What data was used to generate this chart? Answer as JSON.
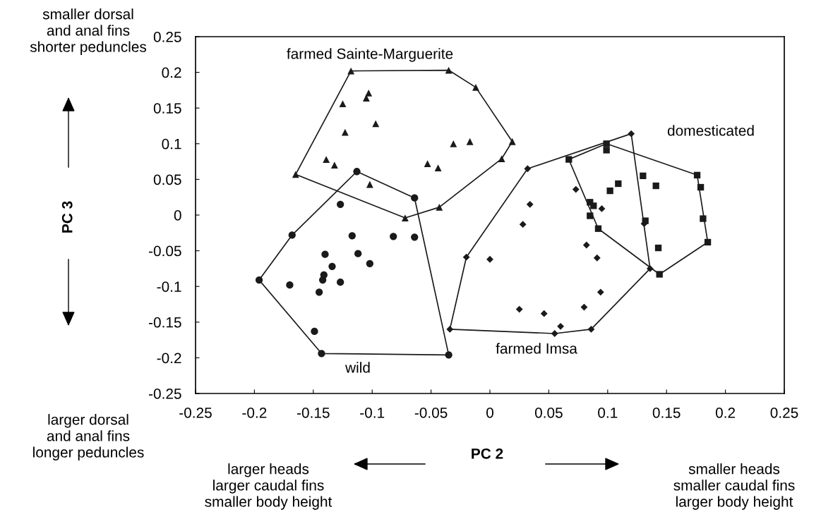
{
  "chart_data": {
    "type": "scatter",
    "xlabel": "PC 2",
    "xlim": [
      -0.25,
      0.25
    ],
    "xticks": [
      -0.25,
      -0.2,
      -0.15,
      -0.1,
      -0.05,
      0,
      0.05,
      0.1,
      0.15,
      0.2,
      0.25
    ],
    "ylim": [
      -0.25,
      0.25
    ],
    "yticks": [
      -0.25,
      -0.2,
      -0.15,
      -0.1,
      -0.05,
      0,
      0.05,
      0.1,
      0.15,
      0.2,
      0.25
    ],
    "grid": false,
    "legend": false,
    "annotations": [
      "farmed Sainte-Marguerite",
      "domesticated",
      "farmed Imsa",
      "wild",
      "PC 3",
      "smaller dorsal\nand anal fins\nshorter peduncles",
      "larger dorsal\nand anal fins\nlonger peduncles",
      "larger heads\nlarger caudal fins\nsmaller body height",
      "smaller heads\nsmaller caudal fins\nlarger body height"
    ],
    "series": [
      {
        "marker": "triangle",
        "color": "#1a1a1a",
        "x": [
          -0.118,
          -0.035,
          -0.012,
          0.019,
          0.01,
          -0.043,
          -0.072,
          -0.165,
          -0.103,
          -0.105,
          -0.125,
          -0.097,
          -0.123,
          -0.031,
          -0.017,
          -0.139,
          -0.132,
          -0.053,
          -0.044,
          -0.102
        ],
        "values": [
          0.202,
          0.203,
          0.179,
          0.103,
          0.079,
          0.011,
          -0.004,
          0.057,
          0.171,
          0.164,
          0.156,
          0.128,
          0.116,
          0.1,
          0.103,
          0.078,
          0.07,
          0.072,
          0.066,
          0.043
        ]
      },
      {
        "type": "line",
        "marker": "none",
        "color": "#1a1a1a",
        "x": [
          -0.165,
          -0.118,
          -0.035,
          -0.012,
          0.019
        ],
        "values": [
          0.057,
          0.202,
          0.203,
          0.179,
          0.103
        ]
      },
      {
        "type": "line",
        "marker": "none",
        "color": "#1a1a1a",
        "x": [
          -0.165,
          -0.072,
          -0.043,
          0.01,
          0.019
        ],
        "values": [
          0.057,
          -0.004,
          0.011,
          0.079,
          0.103
        ]
      },
      {
        "marker": "circle",
        "color": "#1a1a1a",
        "x": [
          -0.113,
          -0.064,
          -0.035,
          -0.143,
          -0.196,
          -0.168,
          -0.127,
          -0.117,
          -0.082,
          -0.064,
          -0.14,
          -0.112,
          -0.102,
          -0.134,
          -0.141,
          -0.142,
          -0.127,
          -0.17,
          -0.145,
          -0.149
        ],
        "values": [
          0.061,
          0.024,
          -0.196,
          -0.194,
          -0.091,
          -0.028,
          0.015,
          -0.029,
          -0.03,
          -0.031,
          -0.055,
          -0.054,
          -0.068,
          -0.072,
          -0.084,
          -0.091,
          -0.094,
          -0.098,
          -0.108,
          -0.163
        ]
      },
      {
        "type": "line",
        "marker": "none",
        "color": "#1a1a1a",
        "x": [
          -0.196,
          -0.168,
          -0.113,
          -0.064,
          -0.035
        ],
        "values": [
          -0.091,
          -0.028,
          0.061,
          0.024,
          -0.196
        ]
      },
      {
        "type": "line",
        "marker": "none",
        "color": "#1a1a1a",
        "x": [
          -0.196,
          -0.143,
          -0.035
        ],
        "values": [
          -0.091,
          -0.194,
          -0.196
        ]
      },
      {
        "marker": "diamond",
        "color": "#1a1a1a",
        "x": [
          0.032,
          0.12,
          0.136,
          0.086,
          0.055,
          -0.034,
          -0.02,
          0.073,
          0.034,
          0.095,
          0.028,
          0.131,
          0.082,
          0.091,
          0.0,
          0.094,
          0.025,
          0.046,
          0.08,
          0.06
        ],
        "values": [
          0.065,
          0.114,
          -0.075,
          -0.16,
          -0.166,
          -0.16,
          -0.059,
          0.036,
          0.015,
          0.009,
          -0.013,
          -0.012,
          -0.042,
          -0.06,
          -0.062,
          -0.108,
          -0.132,
          -0.138,
          -0.129,
          -0.156
        ]
      },
      {
        "type": "line",
        "marker": "none",
        "color": "#1a1a1a",
        "x": [
          -0.034,
          -0.02,
          0.032,
          0.12,
          0.136
        ],
        "values": [
          -0.16,
          -0.059,
          0.065,
          0.114,
          -0.075
        ]
      },
      {
        "type": "line",
        "marker": "none",
        "color": "#1a1a1a",
        "x": [
          -0.034,
          0.055,
          0.086,
          0.136
        ],
        "values": [
          -0.16,
          -0.166,
          -0.16,
          -0.075
        ]
      },
      {
        "marker": "square",
        "color": "#1a1a1a",
        "x": [
          0.067,
          0.099,
          0.176,
          0.185,
          0.144,
          0.092,
          0.099,
          0.13,
          0.109,
          0.102,
          0.141,
          0.179,
          0.085,
          0.088,
          0.085,
          0.132,
          0.181,
          0.143
        ],
        "values": [
          0.078,
          0.1,
          0.056,
          -0.038,
          -0.083,
          -0.019,
          0.091,
          0.055,
          0.044,
          0.034,
          0.041,
          0.039,
          0.018,
          0.013,
          -0.001,
          -0.008,
          -0.005,
          -0.046
        ]
      },
      {
        "type": "line",
        "marker": "none",
        "color": "#1a1a1a",
        "x": [
          0.067,
          0.099,
          0.176,
          0.185
        ],
        "values": [
          0.078,
          0.1,
          0.056,
          -0.038
        ]
      },
      {
        "type": "line",
        "marker": "none",
        "color": "#1a1a1a",
        "x": [
          0.067,
          0.092,
          0.144,
          0.185
        ],
        "values": [
          0.078,
          -0.019,
          -0.083,
          -0.038
        ]
      }
    ]
  }
}
